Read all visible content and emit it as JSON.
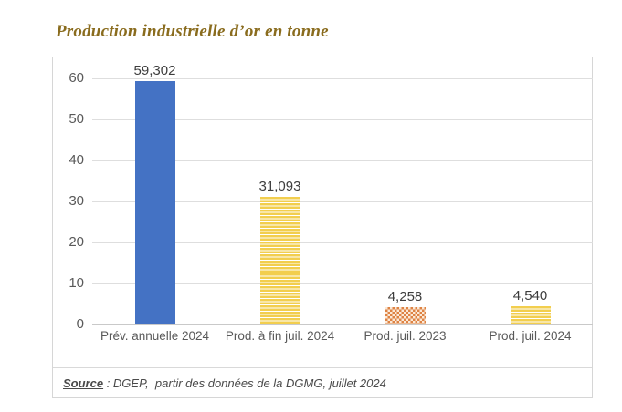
{
  "title": "Production industrielle d’or en tonne",
  "source": {
    "label": "Source",
    "text": " : DGEP,  partir des données de la DGMG, juillet 2024"
  },
  "chart_data": {
    "type": "bar",
    "title": "Production industrielle d’or en tonne",
    "xlabel": "",
    "ylabel": "",
    "categories": [
      "Prév. annuelle 2024",
      "Prod. à fin juil. 2024",
      "Prod. juil. 2023",
      "Prod. juil. 2024"
    ],
    "values": [
      59.302,
      31.093,
      4.258,
      4.54
    ],
    "value_labels": [
      "59,302",
      "31,093",
      "4,258",
      "4,540"
    ],
    "bar_patterns": [
      "solid-blue",
      "stripe-yellow",
      "checker-orange",
      "stripe-yellow"
    ],
    "colors": {
      "blue": "#4472C4",
      "yellow": "#F2CE4E",
      "orange": "#DE8344"
    },
    "ylim": [
      0,
      60
    ],
    "yticks": [
      0,
      10,
      20,
      30,
      40,
      50,
      60
    ],
    "grid": true,
    "legend": "none"
  }
}
